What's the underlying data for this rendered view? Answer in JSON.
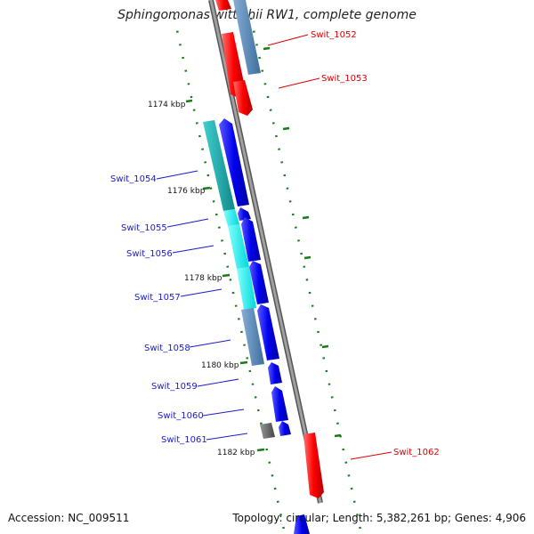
{
  "title": "Sphingomonas wittichii RW1, complete genome",
  "footer": {
    "accession": "Accession: NC_009511",
    "summary": "Topology: circular; Length: 5,382,261 bp; Genes: 4,906"
  },
  "ticks": [
    "1174 kbp",
    "1176 kbp",
    "1178 kbp",
    "1180 kbp",
    "1182 kbp"
  ],
  "gene_labels": [
    {
      "text": "Swit_1052",
      "strand": "forward"
    },
    {
      "text": "Swit_1053",
      "strand": "forward"
    },
    {
      "text": "Swit_1054",
      "strand": "reverse"
    },
    {
      "text": "Swit_1055",
      "strand": "reverse"
    },
    {
      "text": "Swit_1056",
      "strand": "reverse"
    },
    {
      "text": "Swit_1057",
      "strand": "reverse"
    },
    {
      "text": "Swit_1058",
      "strand": "reverse"
    },
    {
      "text": "Swit_1059",
      "strand": "reverse"
    },
    {
      "text": "Swit_1060",
      "strand": "reverse"
    },
    {
      "text": "Swit_1061",
      "strand": "reverse"
    },
    {
      "text": "Swit_1062",
      "strand": "forward"
    }
  ],
  "colors": {
    "backbone": "#808080",
    "forward_cds": "#ff0000",
    "reverse_cds": "#0000ee",
    "cog_teal": "#20b0b0",
    "cog_cyan": "#00ffff",
    "cog_steel": "#5a8ab8",
    "cog_gray": "#666666",
    "tick": "#1a7a1a",
    "label_red": "#dd0000",
    "label_blue": "#1a1acc"
  }
}
